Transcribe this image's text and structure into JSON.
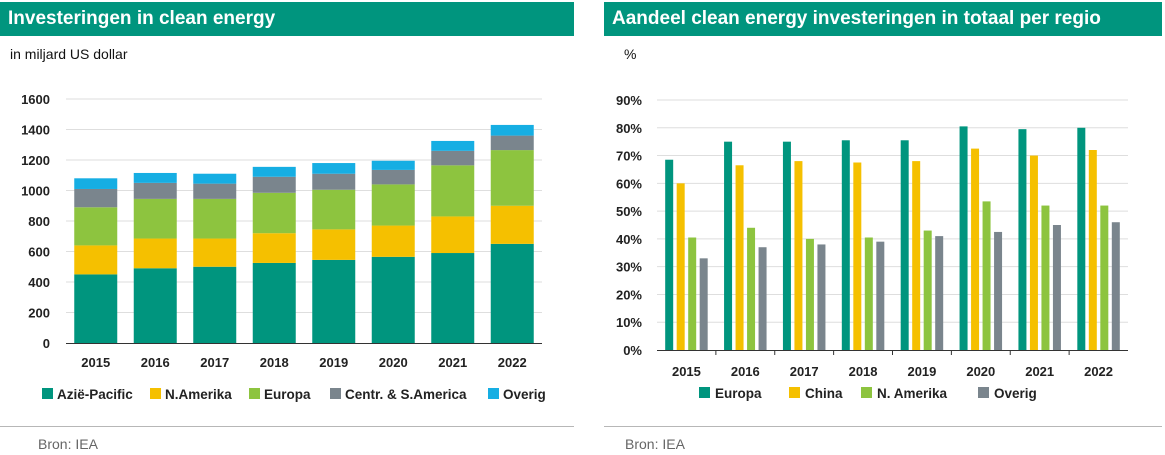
{
  "left": {
    "title": "Investeringen in clean energy",
    "unit": "in miljard US dollar",
    "source": "Bron: IEA"
  },
  "right": {
    "title": "Aandeel clean energy investeringen in totaal per regio",
    "unit": "%",
    "source": "Bron: IEA"
  },
  "chart_data": [
    {
      "type": "bar",
      "stacked": true,
      "title": "Investeringen in clean energy",
      "ylabel": "in miljard US dollar",
      "categories": [
        "2015",
        "2016",
        "2017",
        "2018",
        "2019",
        "2020",
        "2021",
        "2022"
      ],
      "ylim": [
        0,
        1600
      ],
      "yticks": [
        0,
        200,
        400,
        600,
        800,
        1000,
        1200,
        1400,
        1600
      ],
      "grid": true,
      "legend": "bottom",
      "series": [
        {
          "name": "Azië-Pacific",
          "color": "#00957e",
          "values": [
            450,
            490,
            500,
            525,
            545,
            565,
            590,
            650
          ]
        },
        {
          "name": "N.Amerika",
          "color": "#f5c000",
          "values": [
            190,
            195,
            185,
            195,
            200,
            205,
            240,
            250
          ]
        },
        {
          "name": "Europa",
          "color": "#8dc43f",
          "values": [
            250,
            260,
            260,
            265,
            260,
            270,
            335,
            365
          ]
        },
        {
          "name": "Centr. & S.America",
          "color": "#7a858d",
          "values": [
            120,
            105,
            100,
            105,
            105,
            95,
            95,
            95
          ]
        },
        {
          "name": "Overig",
          "color": "#16aee3",
          "values": [
            70,
            65,
            65,
            65,
            70,
            60,
            65,
            70
          ]
        }
      ]
    },
    {
      "type": "bar",
      "title": "Aandeel clean energy investeringen in totaal per regio",
      "ylabel": "%",
      "categories": [
        "2015",
        "2016",
        "2017",
        "2018",
        "2019",
        "2020",
        "2021",
        "2022"
      ],
      "ylim": [
        0,
        90
      ],
      "yticks": [
        0,
        10,
        20,
        30,
        40,
        50,
        60,
        70,
        80,
        90
      ],
      "ytick_suffix": "%",
      "grid": true,
      "legend": "bottom",
      "series": [
        {
          "name": "Europa",
          "color": "#00957e",
          "values": [
            68.5,
            75,
            75,
            75.5,
            75.5,
            80.5,
            79.5,
            80
          ]
        },
        {
          "name": "China",
          "color": "#f5c000",
          "values": [
            60,
            66.5,
            68,
            67.5,
            68,
            72.5,
            70,
            72
          ]
        },
        {
          "name": "N. Amerika",
          "color": "#8dc43f",
          "values": [
            40.5,
            44,
            40,
            40.5,
            43,
            53.5,
            52,
            52
          ]
        },
        {
          "name": "Overig",
          "color": "#7a858d",
          "values": [
            33,
            37,
            38,
            39,
            41,
            42.5,
            45,
            46
          ]
        }
      ]
    }
  ]
}
